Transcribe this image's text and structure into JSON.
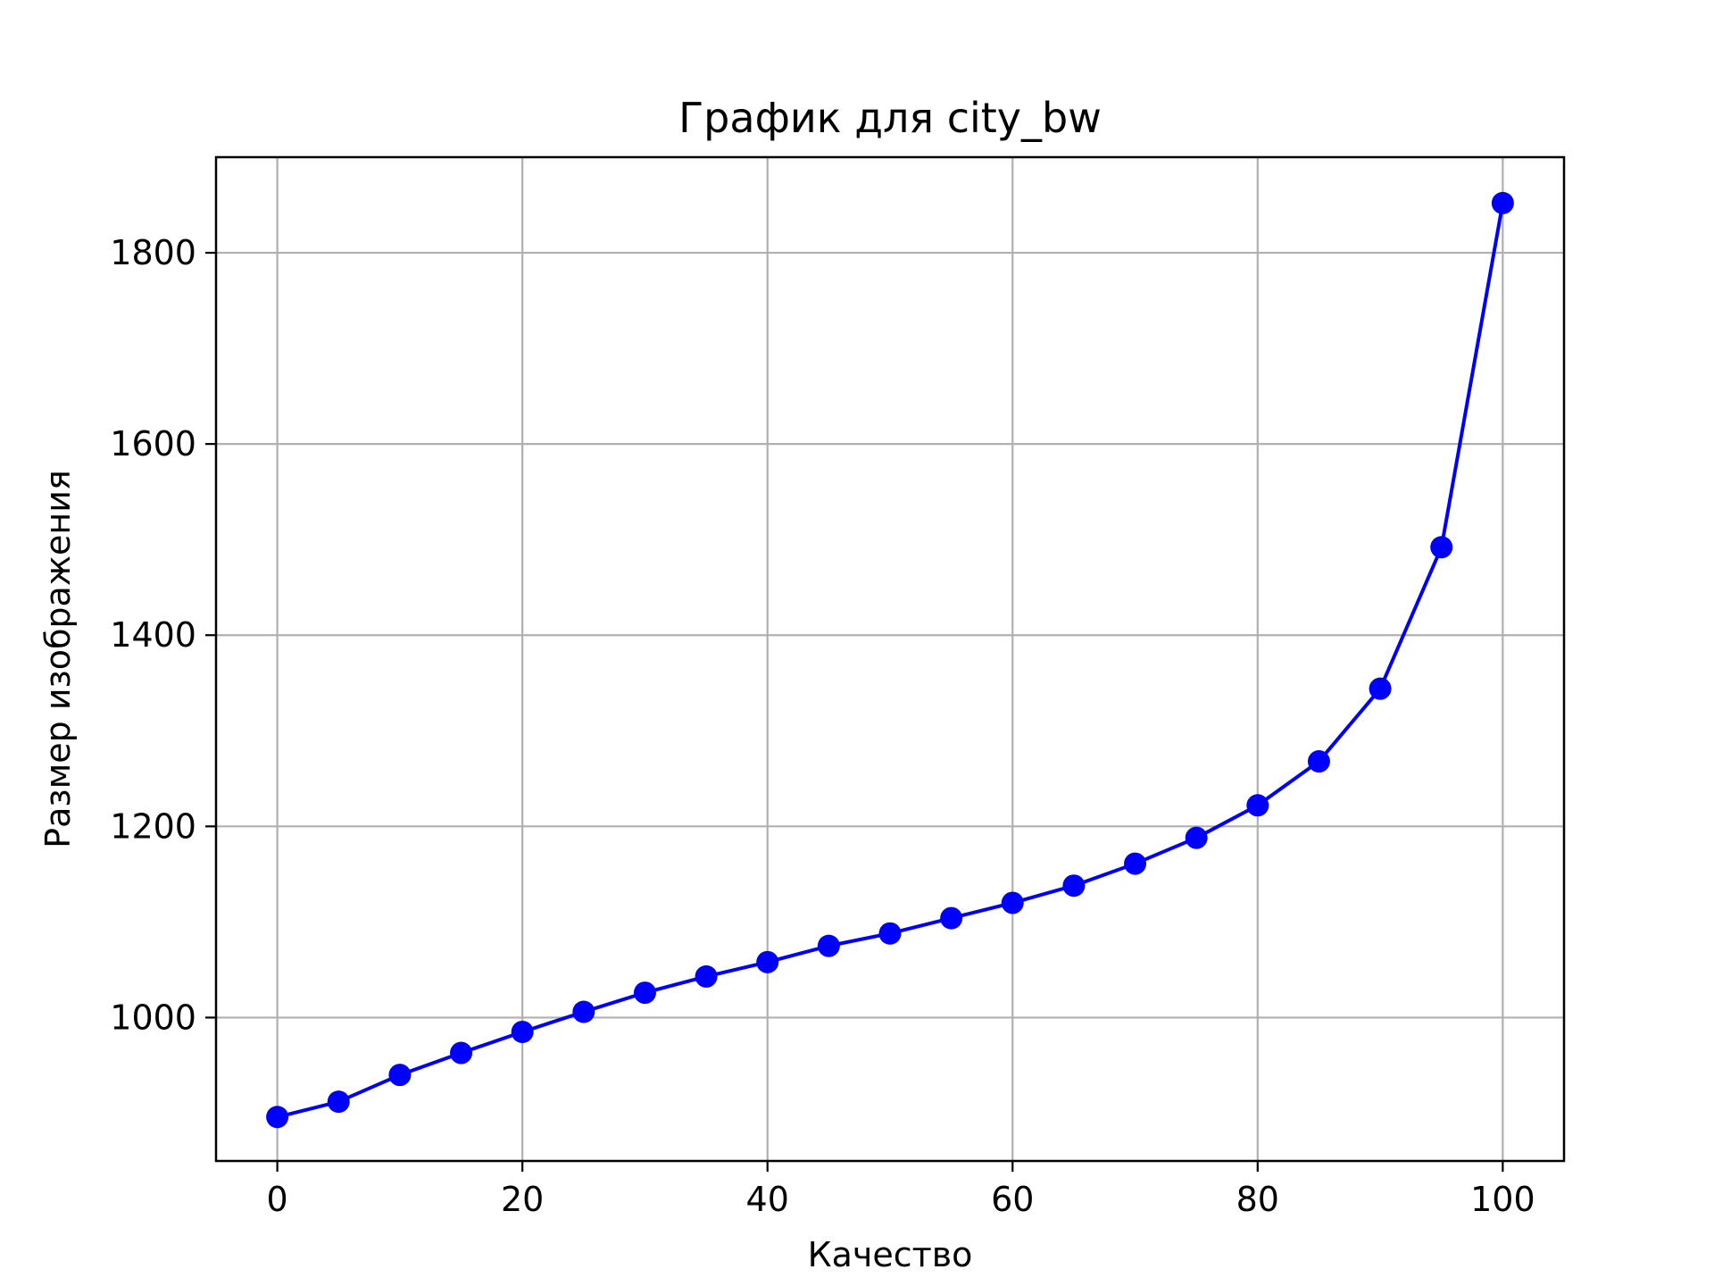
{
  "chart_data": {
    "type": "line",
    "title": "График для city_bw",
    "xlabel": "Качество",
    "ylabel": "Размер изображения",
    "xlim": [
      -5,
      105
    ],
    "ylim": [
      850,
      1900
    ],
    "xticks": [
      0,
      20,
      40,
      60,
      80,
      100
    ],
    "yticks": [
      1000,
      1200,
      1400,
      1600,
      1800
    ],
    "xtick_labels": [
      "0",
      "20",
      "40",
      "60",
      "80",
      "100"
    ],
    "ytick_labels": [
      "1000",
      "1200",
      "1400",
      "1600",
      "1800"
    ],
    "grid": true,
    "legend": false,
    "series": [
      {
        "color": "#0000ff",
        "marker": "circle",
        "x": [
          0,
          5,
          10,
          15,
          20,
          25,
          30,
          35,
          40,
          45,
          50,
          55,
          60,
          65,
          70,
          75,
          80,
          85,
          90,
          95,
          100
        ],
        "y": [
          896,
          912,
          940,
          963,
          985,
          1006,
          1026,
          1043,
          1058,
          1075,
          1088,
          1104,
          1120,
          1138,
          1161,
          1188,
          1222,
          1268,
          1344,
          1492,
          1852
        ]
      }
    ]
  },
  "colors": {
    "line": "#0000ff",
    "grid": "#b0b0b0",
    "axes": "#000000",
    "background": "#ffffff"
  }
}
